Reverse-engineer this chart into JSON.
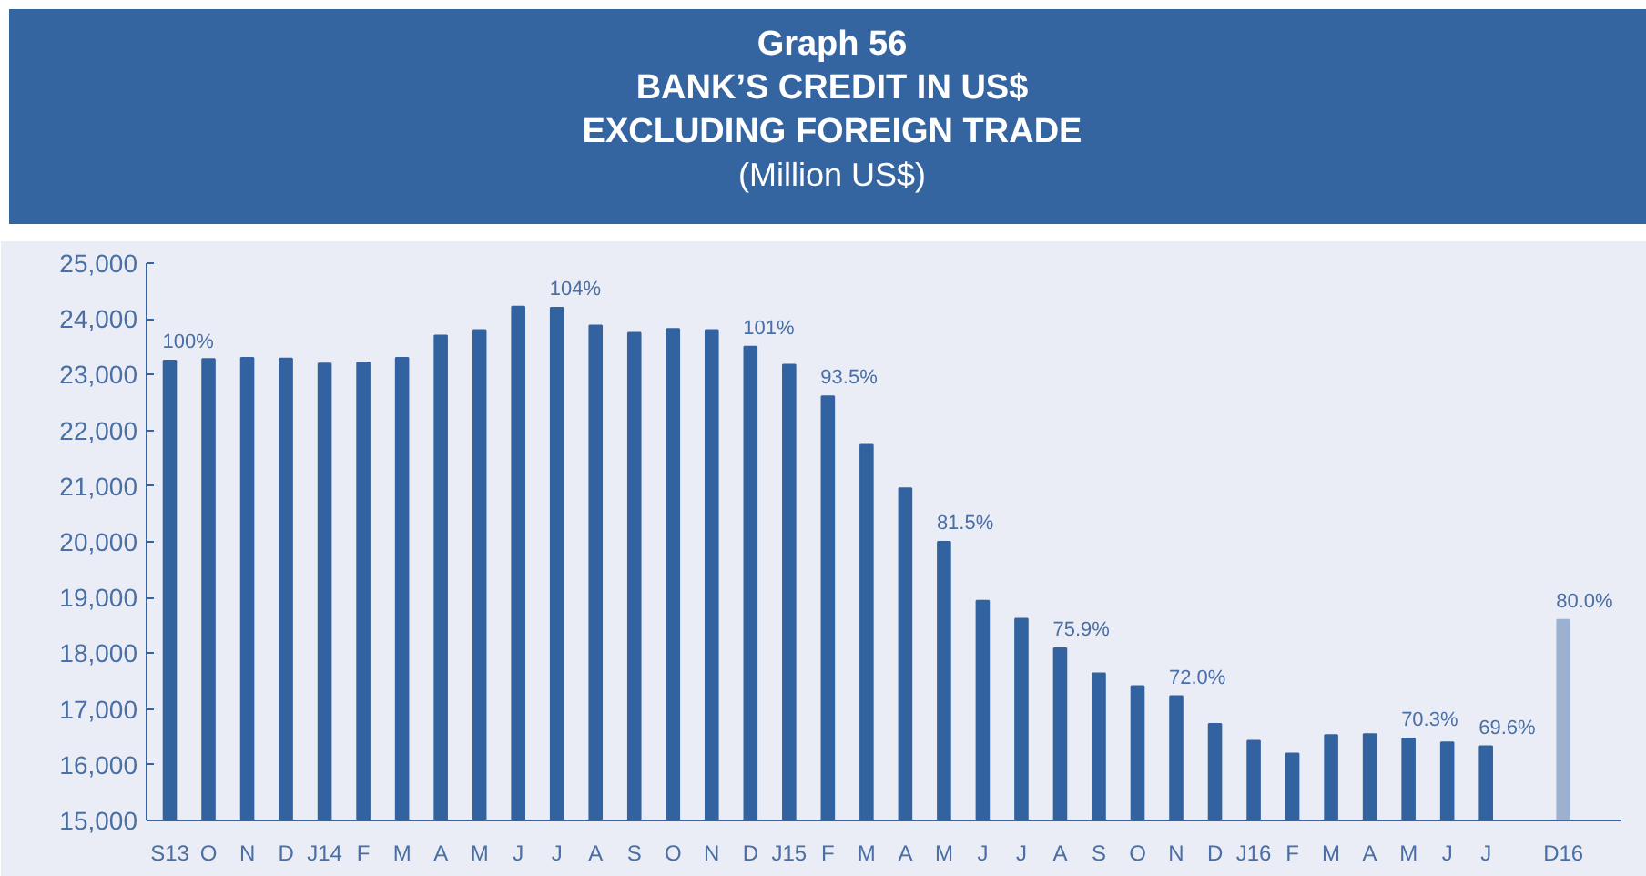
{
  "chart_data": {
    "type": "bar",
    "title": "Graph 56\nBANK’S CREDIT IN US$ EXCLUDING FOREIGN TRADE",
    "subtitle": "(Million US$)",
    "categories": [
      "S13",
      "O",
      "N",
      "D",
      "J14",
      "F",
      "M",
      "A",
      "M",
      "J",
      "J",
      "A",
      "S",
      "O",
      "N",
      "D",
      "J15",
      "F",
      "M",
      "A",
      "M",
      "J",
      "J",
      "A",
      "S",
      "O",
      "N",
      "D",
      "J16",
      "F",
      "M",
      "A",
      "M",
      "J",
      "J",
      null,
      "D16"
    ],
    "values": [
      23250,
      23280,
      23300,
      23290,
      23200,
      23220,
      23300,
      23700,
      23800,
      24220,
      24200,
      23880,
      23750,
      23820,
      23800,
      23500,
      23180,
      22610,
      21740,
      20960,
      20000,
      18940,
      18620,
      18090,
      17640,
      17410,
      17230,
      16730,
      16430,
      16200,
      16530,
      16550,
      16470,
      16400,
      16330,
      null,
      18600
    ],
    "colors": [
      "#3263a0",
      "#3263a0",
      "#3263a0",
      "#3263a0",
      "#3263a0",
      "#3263a0",
      "#3263a0",
      "#3263a0",
      "#3263a0",
      "#3263a0",
      "#3263a0",
      "#3263a0",
      "#3263a0",
      "#3263a0",
      "#3263a0",
      "#3263a0",
      "#3263a0",
      "#3263a0",
      "#3263a0",
      "#3263a0",
      "#3263a0",
      "#3263a0",
      "#3263a0",
      "#3263a0",
      "#3263a0",
      "#3263a0",
      "#3263a0",
      "#3263a0",
      "#3263a0",
      "#3263a0",
      "#3263a0",
      "#3263a0",
      "#3263a0",
      "#3263a0",
      "#3263a0",
      null,
      "#9cb1d0"
    ],
    "annotations": [
      "100%",
      "104%",
      "101%",
      "93.5%",
      "81.5%",
      "75.9%",
      "72.0%",
      "70.3%",
      "69.6%",
      "80.0%"
    ],
    "ylim": [
      15000,
      25000
    ],
    "yticks": [
      {
        "value": 15000,
        "label": "15,000"
      },
      {
        "value": 16000,
        "label": "16,000"
      },
      {
        "value": 17000,
        "label": "17,000"
      },
      {
        "value": 18000,
        "label": "18,000"
      },
      {
        "value": 19000,
        "label": "19,000"
      },
      {
        "value": 20000,
        "label": "20,000"
      },
      {
        "value": 21000,
        "label": "21,000"
      },
      {
        "value": 22000,
        "label": "22,000"
      },
      {
        "value": 23000,
        "label": "23,000"
      },
      {
        "value": 24000,
        "label": "24,000"
      },
      {
        "value": 25000,
        "label": "25,000"
      }
    ],
    "grid": false
  }
}
